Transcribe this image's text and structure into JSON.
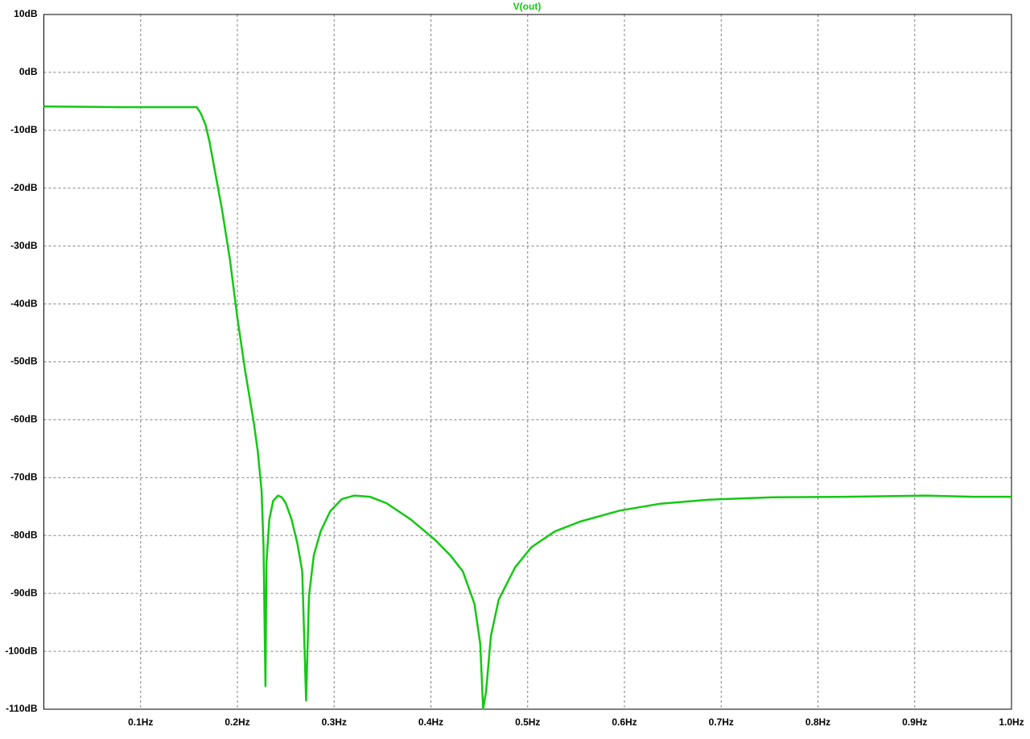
{
  "chart_data": {
    "type": "line",
    "x": [
      0,
      0.08,
      0.158,
      0.162,
      0.167,
      0.171,
      0.178,
      0.184,
      0.192,
      0.2,
      0.208,
      0.217,
      0.221,
      0.225,
      0.227,
      0.229,
      0.23,
      0.233,
      0.237,
      0.242,
      0.246,
      0.25,
      0.256,
      0.262,
      0.267,
      0.271,
      0.274,
      0.279,
      0.286,
      0.296,
      0.308,
      0.321,
      0.337,
      0.354,
      0.379,
      0.404,
      0.42,
      0.433,
      0.445,
      0.451,
      0.454,
      0.457,
      0.462,
      0.47,
      0.487,
      0.504,
      0.528,
      0.554,
      0.595,
      0.637,
      0.687,
      0.753,
      0.828,
      0.911,
      0.961,
      1.0
    ],
    "series": [
      {
        "name": "V(out)",
        "color": "#14c814",
        "values": [
          -5.9,
          -6,
          -6,
          -7,
          -9,
          -11.8,
          -18.1,
          -23.6,
          -32,
          -42.4,
          -51.5,
          -60.5,
          -65.4,
          -72.3,
          -82,
          -106,
          -84.8,
          -77.2,
          -74,
          -73.1,
          -73.4,
          -74.4,
          -77.2,
          -81.4,
          -86.2,
          -108.5,
          -90.4,
          -83.4,
          -79.3,
          -75.8,
          -73.7,
          -73.1,
          -73.3,
          -74.4,
          -77.2,
          -80.7,
          -83.4,
          -86.2,
          -91.8,
          -98.7,
          -109.9,
          -107,
          -97.3,
          -91.1,
          -85.5,
          -82,
          -79.3,
          -77.6,
          -75.7,
          -74.5,
          -73.8,
          -73.4,
          -73.3,
          -73.1,
          -73.3,
          -73.3
        ]
      }
    ],
    "xlim": [
      0,
      1.0
    ],
    "xticks": [
      {
        "value": 0.1,
        "label": "0.1Hz"
      },
      {
        "value": 0.2,
        "label": "0.2Hz"
      },
      {
        "value": 0.3,
        "label": "0.3Hz"
      },
      {
        "value": 0.4,
        "label": "0.4Hz"
      },
      {
        "value": 0.5,
        "label": "0.5Hz"
      },
      {
        "value": 0.6,
        "label": "0.6Hz"
      },
      {
        "value": 0.7,
        "label": "0.7Hz"
      },
      {
        "value": 0.8,
        "label": "0.8Hz"
      },
      {
        "value": 0.9,
        "label": "0.9Hz"
      },
      {
        "value": 1.0,
        "label": "1.0Hz"
      }
    ],
    "ylim": [
      -110,
      10
    ],
    "yticks": [
      {
        "value": 10,
        "label": "10dB"
      },
      {
        "value": 0,
        "label": "0dB"
      },
      {
        "value": -10,
        "label": "-10dB"
      },
      {
        "value": -20,
        "label": "-20dB"
      },
      {
        "value": -30,
        "label": "-30dB"
      },
      {
        "value": -40,
        "label": "-40dB"
      },
      {
        "value": -50,
        "label": "-50dB"
      },
      {
        "value": -60,
        "label": "-60dB"
      },
      {
        "value": -70,
        "label": "-70dB"
      },
      {
        "value": -80,
        "label": "-80dB"
      },
      {
        "value": -90,
        "label": "-90dB"
      },
      {
        "value": -100,
        "label": "-100dB"
      },
      {
        "value": -110,
        "label": "-110dB"
      }
    ],
    "grid": true
  }
}
